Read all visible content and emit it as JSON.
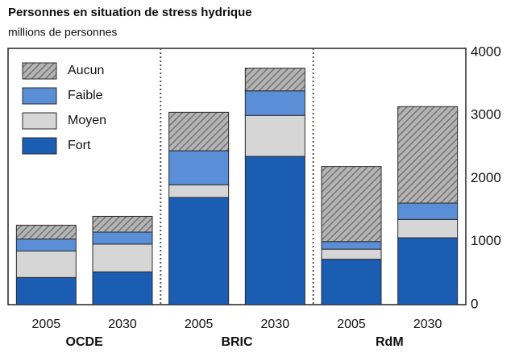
{
  "chart_data": {
    "type": "stacked-bar",
    "title": "Personnes en situation de stress hydrique",
    "subtitle": "millions de personnes",
    "categories": [
      "2005",
      "2030",
      "2005",
      "2030",
      "2005",
      "2030"
    ],
    "groups": [
      "OCDE",
      "BRIC",
      "RdM"
    ],
    "series": [
      {
        "name": "Fort",
        "color": "#1b5db3",
        "values": [
          430,
          520,
          1700,
          2350,
          720,
          1060
        ]
      },
      {
        "name": "Moyen",
        "color": "#d6d6d6",
        "values": [
          420,
          440,
          200,
          650,
          160,
          290
        ]
      },
      {
        "name": "Faible",
        "color": "#5a8fd8",
        "values": [
          190,
          190,
          540,
          390,
          120,
          260
        ]
      },
      {
        "name": "Aucun",
        "color": "#7a7a7a",
        "hatch": true,
        "values": [
          220,
          250,
          610,
          360,
          1190,
          1530
        ]
      }
    ],
    "ylim": [
      0,
      4000
    ],
    "yticks": [
      0,
      1000,
      2000,
      3000,
      4000
    ],
    "grid": false,
    "legend": "upper-left"
  }
}
